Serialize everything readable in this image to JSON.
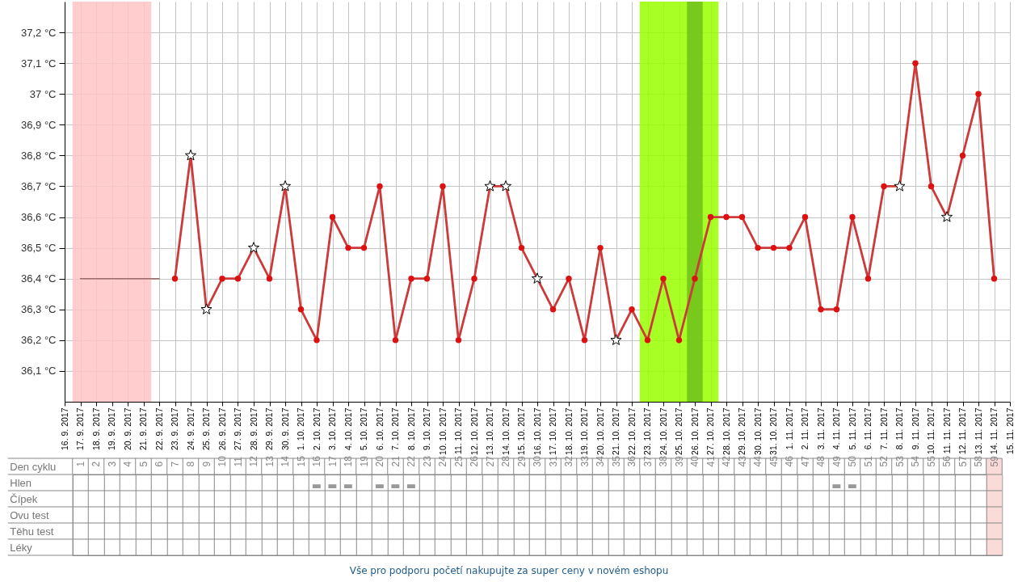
{
  "chart_data": [
    {
      "type": "line",
      "x": [
        "2017-09-17",
        "2017-09-18",
        "2017-09-19",
        "2017-09-20",
        "2017-09-21",
        "2017-09-22",
        "2017-09-23",
        "2017-09-24",
        "2017-09-25",
        "2017-09-26",
        "2017-09-27",
        "2017-09-28",
        "2017-09-29",
        "2017-09-30",
        "2017-10-01",
        "2017-10-02",
        "2017-10-03",
        "2017-10-04",
        "2017-10-05",
        "2017-10-06",
        "2017-10-07",
        "2017-10-08",
        "2017-10-09",
        "2017-10-10",
        "2017-10-11",
        "2017-10-12",
        "2017-10-13",
        "2017-10-14",
        "2017-10-15",
        "2017-10-16",
        "2017-10-17",
        "2017-10-18",
        "2017-10-19",
        "2017-10-20",
        "2017-10-21",
        "2017-10-22",
        "2017-10-23",
        "2017-10-24",
        "2017-10-25",
        "2017-10-26",
        "2017-10-27",
        "2017-10-28",
        "2017-10-29",
        "2017-10-30",
        "2017-10-31",
        "2017-11-01",
        "2017-11-02",
        "2017-11-03",
        "2017-11-04",
        "2017-11-05",
        "2017-11-06",
        "2017-11-07",
        "2017-11-08",
        "2017-11-09",
        "2017-11-10",
        "2017-11-11",
        "2017-11-12",
        "2017-11-13",
        "2017-11-14"
      ],
      "series": [
        {
          "type": "line",
          "color": "#996666",
          "line_style": "dotted",
          "marker": "none",
          "values": [
            36.4,
            36.4,
            36.4,
            36.4,
            36.4,
            36.4,
            null,
            null,
            null,
            null,
            null,
            null,
            null,
            null,
            null,
            null,
            null,
            null,
            null,
            null,
            null,
            null,
            null,
            null,
            null,
            null,
            null,
            null,
            null,
            null,
            null,
            null,
            null,
            null,
            null,
            null,
            null,
            null,
            null,
            null,
            null,
            null,
            null,
            null,
            null,
            null,
            null,
            null,
            null,
            null,
            null,
            null,
            null,
            null,
            null,
            null,
            null,
            null,
            null
          ]
        },
        {
          "type": "line",
          "color": "#cc3a3a",
          "marker": "none",
          "values": [
            null,
            null,
            null,
            null,
            null,
            null,
            36.4,
            36.8,
            36.3,
            36.4,
            36.4,
            36.5,
            36.4,
            36.7,
            36.3,
            36.2,
            36.6,
            36.5,
            36.5,
            36.7,
            36.2,
            36.4,
            36.4,
            36.7,
            36.2,
            36.4,
            36.7,
            36.7,
            36.5,
            36.4,
            36.3,
            36.4,
            36.2,
            36.5,
            36.2,
            36.3,
            36.2,
            36.4,
            36.2,
            36.4,
            36.6,
            36.6,
            36.6,
            36.5,
            36.5,
            36.5,
            36.6,
            36.3,
            36.3,
            36.6,
            36.4,
            36.7,
            36.7,
            37.1,
            36.7,
            36.6,
            36.8,
            37.0,
            36.4
          ]
        },
        {
          "type": "scatter",
          "color": "#dd1111",
          "marker": "circle",
          "values": [
            null,
            null,
            null,
            null,
            null,
            null,
            36.4,
            null,
            null,
            36.4,
            36.4,
            null,
            36.4,
            null,
            36.3,
            36.2,
            36.6,
            36.5,
            36.5,
            36.7,
            36.2,
            36.4,
            36.4,
            36.7,
            36.2,
            36.4,
            null,
            null,
            36.5,
            null,
            36.3,
            36.4,
            36.2,
            36.5,
            null,
            36.3,
            36.2,
            36.4,
            36.2,
            36.4,
            36.6,
            36.6,
            36.6,
            36.5,
            36.5,
            36.5,
            36.6,
            36.3,
            36.3,
            36.6,
            36.4,
            36.7,
            null,
            37.1,
            36.7,
            null,
            36.8,
            37.0,
            36.4
          ]
        },
        {
          "type": "scatter",
          "color": "#ffffff",
          "marker": "star",
          "values": [
            null,
            null,
            null,
            null,
            null,
            null,
            null,
            36.8,
            36.3,
            null,
            null,
            36.5,
            null,
            36.7,
            null,
            null,
            null,
            null,
            null,
            null,
            null,
            null,
            null,
            null,
            null,
            null,
            36.7,
            36.7,
            null,
            36.4,
            null,
            null,
            null,
            null,
            36.2,
            null,
            null,
            null,
            null,
            null,
            null,
            null,
            null,
            null,
            null,
            null,
            null,
            null,
            null,
            null,
            null,
            null,
            36.7,
            null,
            null,
            36.6,
            null,
            null,
            null
          ]
        }
      ],
      "xlim": [
        "2017-09-16",
        "2017-11-15"
      ],
      "xticks": [
        {
          "value": "2017-09-16",
          "label": "16. 9. 2017"
        },
        {
          "value": "2017-09-17",
          "label": "17. 9. 2017"
        },
        {
          "value": "2017-09-18",
          "label": "18. 9. 2017"
        },
        {
          "value": "2017-09-19",
          "label": "19. 9. 2017"
        },
        {
          "value": "2017-09-20",
          "label": "20. 9. 2017"
        },
        {
          "value": "2017-09-21",
          "label": "21. 9. 2017"
        },
        {
          "value": "2017-09-22",
          "label": "22. 9. 2017"
        },
        {
          "value": "2017-09-23",
          "label": "23. 9. 2017"
        },
        {
          "value": "2017-09-24",
          "label": "24. 9. 2017"
        },
        {
          "value": "2017-09-25",
          "label": "25. 9. 2017"
        },
        {
          "value": "2017-09-26",
          "label": "26. 9. 2017"
        },
        {
          "value": "2017-09-27",
          "label": "27. 9. 2017"
        },
        {
          "value": "2017-09-28",
          "label": "28. 9. 2017"
        },
        {
          "value": "2017-09-29",
          "label": "29. 9. 2017"
        },
        {
          "value": "2017-09-30",
          "label": "30. 9. 2017"
        },
        {
          "value": "2017-10-01",
          "label": "1. 10. 2017"
        },
        {
          "value": "2017-10-02",
          "label": "2. 10. 2017"
        },
        {
          "value": "2017-10-03",
          "label": "3. 10. 2017"
        },
        {
          "value": "2017-10-04",
          "label": "4. 10. 2017"
        },
        {
          "value": "2017-10-05",
          "label": "5. 10. 2017"
        },
        {
          "value": "2017-10-06",
          "label": "6. 10. 2017"
        },
        {
          "value": "2017-10-07",
          "label": "7. 10. 2017"
        },
        {
          "value": "2017-10-08",
          "label": "8. 10. 2017"
        },
        {
          "value": "2017-10-09",
          "label": "9. 10. 2017"
        },
        {
          "value": "2017-10-10",
          "label": "10. 10. 2017"
        },
        {
          "value": "2017-10-11",
          "label": "11. 10. 2017"
        },
        {
          "value": "2017-10-12",
          "label": "12. 10. 2017"
        },
        {
          "value": "2017-10-13",
          "label": "13. 10. 2017"
        },
        {
          "value": "2017-10-14",
          "label": "14. 10. 2017"
        },
        {
          "value": "2017-10-15",
          "label": "15. 10. 2017"
        },
        {
          "value": "2017-10-16",
          "label": "16. 10. 2017"
        },
        {
          "value": "2017-10-17",
          "label": "17. 10. 2017"
        },
        {
          "value": "2017-10-18",
          "label": "18. 10. 2017"
        },
        {
          "value": "2017-10-19",
          "label": "19. 10. 2017"
        },
        {
          "value": "2017-10-20",
          "label": "20. 10. 2017"
        },
        {
          "value": "2017-10-21",
          "label": "21. 10. 2017"
        },
        {
          "value": "2017-10-22",
          "label": "22. 10. 2017"
        },
        {
          "value": "2017-10-23",
          "label": "23. 10. 2017"
        },
        {
          "value": "2017-10-24",
          "label": "24. 10. 2017"
        },
        {
          "value": "2017-10-25",
          "label": "25. 10. 2017"
        },
        {
          "value": "2017-10-26",
          "label": "26. 10. 2017"
        },
        {
          "value": "2017-10-27",
          "label": "27. 10. 2017"
        },
        {
          "value": "2017-10-28",
          "label": "28. 10. 2017"
        },
        {
          "value": "2017-10-29",
          "label": "29. 10. 2017"
        },
        {
          "value": "2017-10-30",
          "label": "30. 10. 2017"
        },
        {
          "value": "2017-10-31",
          "label": "31. 10. 2017"
        },
        {
          "value": "2017-11-01",
          "label": "1. 11. 2017"
        },
        {
          "value": "2017-11-02",
          "label": "2. 11. 2017"
        },
        {
          "value": "2017-11-03",
          "label": "3. 11. 2017"
        },
        {
          "value": "2017-11-04",
          "label": "4. 11. 2017"
        },
        {
          "value": "2017-11-05",
          "label": "5. 11. 2017"
        },
        {
          "value": "2017-11-06",
          "label": "6. 11. 2017"
        },
        {
          "value": "2017-11-07",
          "label": "7. 11. 2017"
        },
        {
          "value": "2017-11-08",
          "label": "8. 11. 2017"
        },
        {
          "value": "2017-11-09",
          "label": "9. 11. 2017"
        },
        {
          "value": "2017-11-10",
          "label": "10. 11. 2017"
        },
        {
          "value": "2017-11-11",
          "label": "11. 11. 2017"
        },
        {
          "value": "2017-11-12",
          "label": "12. 11. 2017"
        },
        {
          "value": "2017-11-13",
          "label": "13. 11. 2017"
        },
        {
          "value": "2017-11-14",
          "label": "14. 11. 2017"
        },
        {
          "value": "2017-11-15",
          "label": "15. 11. 2017"
        }
      ],
      "ylim": [
        36.0,
        37.3
      ],
      "yticks": [
        {
          "value": 36.1,
          "label": "36,1 °C"
        },
        {
          "value": 36.2,
          "label": "36,2 °C"
        },
        {
          "value": 36.3,
          "label": "36,3 °C"
        },
        {
          "value": 36.4,
          "label": "36,4 °C"
        },
        {
          "value": 36.5,
          "label": "36,5 °C"
        },
        {
          "value": 36.6,
          "label": "36,6 °C"
        },
        {
          "value": 36.7,
          "label": "36,7 °C"
        },
        {
          "value": 36.8,
          "label": "36,8 °C"
        },
        {
          "value": 36.9,
          "label": "36,9 °C"
        },
        {
          "value": 37.0,
          "label": "37 °C"
        },
        {
          "value": 37.1,
          "label": "37,1 °C"
        },
        {
          "value": 37.2,
          "label": "37,2 °C"
        }
      ],
      "grid": true,
      "bands": [
        {
          "axis": "x",
          "from": "2017-09-16T12:00",
          "to": "2017-09-21T12:00",
          "color": "#ffc4c4"
        },
        {
          "axis": "x",
          "from": "2017-10-22T12:00",
          "to": "2017-10-27T12:00",
          "color": "#99ff00"
        },
        {
          "axis": "x",
          "from": "2017-10-25T12:00",
          "to": "2017-10-26T12:00",
          "color": "#6fbf1a"
        }
      ],
      "annotations": [
        "Vše pro podporu početí nakupujte za super ceny v novém eshopu"
      ]
    },
    {
      "type": "heatmap",
      "xlabel": "Den cyklu",
      "color": "#999999",
      "categories": [
        "1",
        "2",
        "3",
        "4",
        "5",
        "6",
        "7",
        "8",
        "9",
        "10",
        "11",
        "12",
        "13",
        "14",
        "15",
        "16",
        "17",
        "18",
        "19",
        "20",
        "21",
        "22",
        "23",
        "24",
        "25",
        "26",
        "27",
        "28",
        "29",
        "30",
        "31",
        "32",
        "33",
        "34",
        "35",
        "36",
        "37",
        "38",
        "39",
        "40",
        "41",
        "42",
        "43",
        "44",
        "45",
        "46",
        "47",
        "48",
        "49",
        "50",
        "51",
        "52",
        "53",
        "54",
        "55",
        "56",
        "57",
        "58",
        "59"
      ],
      "y_categories": [
        "Hlen",
        "Čípek",
        "Ovu test",
        "Těhu test",
        "Léky"
      ],
      "cells": [
        [
          null,
          null,
          null,
          null,
          null,
          null,
          null,
          null,
          null,
          null,
          null,
          null,
          null,
          null,
          null,
          null,
          null,
          null,
          null,
          null,
          null,
          null,
          null,
          null,
          null,
          null,
          null,
          null,
          null,
          null,
          null,
          null,
          null,
          null,
          null,
          null,
          null,
          null,
          null,
          null,
          null,
          null,
          null,
          null,
          null,
          null,
          null,
          null,
          null,
          null,
          null,
          null,
          null,
          null,
          null,
          null,
          null,
          null,
          null
        ],
        [
          null,
          null,
          null,
          null,
          null,
          null,
          null,
          null,
          null,
          null,
          null,
          null,
          null,
          null,
          null,
          null,
          null,
          null,
          null,
          null,
          null,
          null,
          null,
          null,
          null,
          null,
          null,
          null,
          null,
          null,
          null,
          null,
          null,
          null,
          null,
          null,
          null,
          null,
          null,
          null,
          null,
          null,
          null,
          null,
          null,
          null,
          null,
          null,
          null,
          null,
          null,
          null,
          null,
          null,
          null,
          null,
          null,
          null,
          null
        ],
        [
          null,
          null,
          null,
          null,
          null,
          null,
          null,
          null,
          null,
          null,
          null,
          null,
          null,
          null,
          null,
          null,
          null,
          null,
          null,
          null,
          null,
          null,
          null,
          null,
          null,
          null,
          null,
          null,
          null,
          null,
          null,
          null,
          null,
          null,
          null,
          null,
          null,
          null,
          null,
          null,
          null,
          null,
          null,
          null,
          null,
          null,
          null,
          null,
          null,
          null,
          null,
          null,
          null,
          null,
          null,
          null,
          null,
          null,
          null
        ],
        [
          null,
          null,
          null,
          null,
          null,
          null,
          null,
          null,
          null,
          null,
          null,
          null,
          null,
          null,
          null,
          null,
          null,
          null,
          null,
          null,
          null,
          null,
          null,
          null,
          null,
          null,
          null,
          null,
          null,
          null,
          null,
          null,
          null,
          null,
          null,
          null,
          null,
          null,
          null,
          null,
          null,
          null,
          null,
          null,
          null,
          null,
          null,
          null,
          null,
          null,
          null,
          null,
          null,
          null,
          null,
          null,
          null,
          null,
          null
        ],
        [
          null,
          null,
          null,
          null,
          null,
          null,
          null,
          null,
          null,
          null,
          null,
          null,
          null,
          null,
          null,
          null,
          null,
          null,
          null,
          null,
          null,
          null,
          null,
          null,
          null,
          null,
          null,
          null,
          null,
          null,
          null,
          null,
          null,
          null,
          null,
          null,
          null,
          null,
          null,
          null,
          null,
          null,
          null,
          null,
          null,
          null,
          null,
          null,
          null,
          null,
          null,
          null,
          null,
          null,
          null,
          null,
          null,
          null,
          null
        ]
      ],
      "cell_labels": [
        [
          null,
          null,
          null,
          null,
          null,
          null,
          null,
          null,
          null,
          null,
          null,
          null,
          null,
          null,
          null,
          "▬",
          "▬",
          "▬",
          null,
          "▬",
          "▬",
          "▬",
          null,
          null,
          null,
          null,
          null,
          null,
          null,
          null,
          null,
          null,
          null,
          null,
          null,
          null,
          null,
          null,
          null,
          null,
          null,
          null,
          null,
          null,
          null,
          null,
          null,
          null,
          "▬",
          "▬",
          null,
          null,
          null,
          null,
          null,
          null,
          null,
          null,
          null
        ],
        [
          null,
          null,
          null,
          null,
          null,
          null,
          null,
          null,
          null,
          null,
          null,
          null,
          null,
          null,
          null,
          null,
          null,
          null,
          null,
          null,
          null,
          null,
          null,
          null,
          null,
          null,
          null,
          null,
          null,
          null,
          null,
          null,
          null,
          null,
          null,
          null,
          null,
          null,
          null,
          null,
          null,
          null,
          null,
          null,
          null,
          null,
          null,
          null,
          null,
          null,
          null,
          null,
          null,
          null,
          null,
          null,
          null,
          null,
          null
        ],
        [
          null,
          null,
          null,
          null,
          null,
          null,
          null,
          null,
          null,
          null,
          null,
          null,
          null,
          null,
          null,
          null,
          null,
          null,
          null,
          null,
          null,
          null,
          null,
          null,
          null,
          null,
          null,
          null,
          null,
          null,
          null,
          null,
          null,
          null,
          null,
          null,
          null,
          null,
          null,
          null,
          null,
          null,
          null,
          null,
          null,
          null,
          null,
          null,
          null,
          null,
          null,
          null,
          null,
          null,
          null,
          null,
          null,
          null,
          null
        ],
        [
          null,
          null,
          null,
          null,
          null,
          null,
          null,
          null,
          null,
          null,
          null,
          null,
          null,
          null,
          null,
          null,
          null,
          null,
          null,
          null,
          null,
          null,
          null,
          null,
          null,
          null,
          null,
          null,
          null,
          null,
          null,
          null,
          null,
          null,
          null,
          null,
          null,
          null,
          null,
          null,
          null,
          null,
          null,
          null,
          null,
          null,
          null,
          null,
          null,
          null,
          null,
          null,
          null,
          null,
          null,
          null,
          null,
          null,
          null
        ],
        [
          null,
          null,
          null,
          null,
          null,
          null,
          null,
          null,
          null,
          null,
          null,
          null,
          null,
          null,
          null,
          null,
          null,
          null,
          null,
          null,
          null,
          null,
          null,
          null,
          null,
          null,
          null,
          null,
          null,
          null,
          null,
          null,
          null,
          null,
          null,
          null,
          null,
          null,
          null,
          null,
          null,
          null,
          null,
          null,
          null,
          null,
          null,
          null,
          null,
          null,
          null,
          null,
          null,
          null,
          null,
          null,
          null,
          null,
          null
        ]
      ],
      "bands": [
        {
          "axis": "x",
          "from": "59",
          "to": "59",
          "color": "#fadbd8"
        }
      ]
    }
  ]
}
